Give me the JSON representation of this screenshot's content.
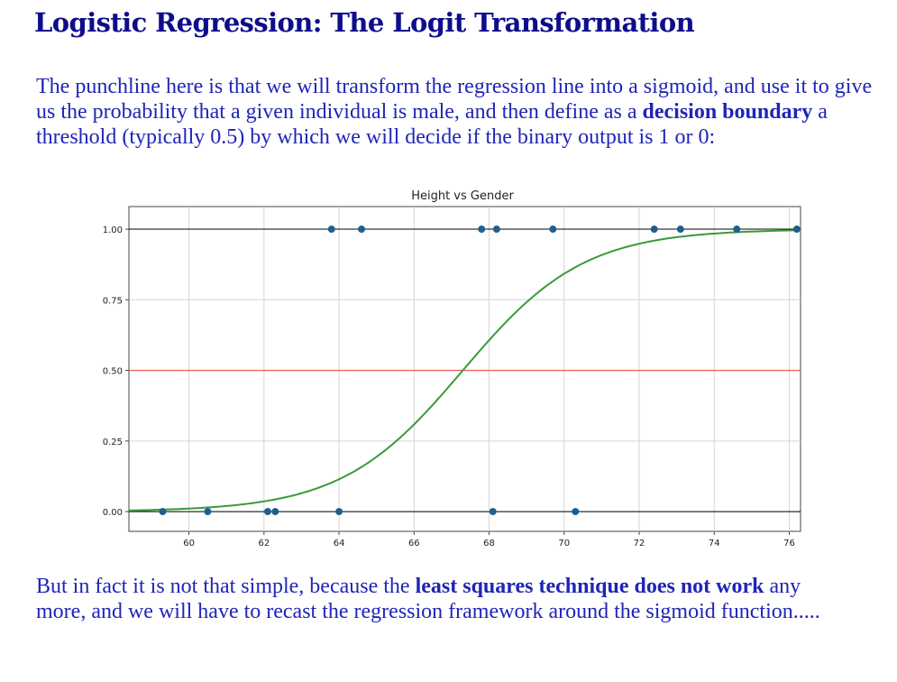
{
  "page": {
    "title": "Logistic Regression: The Logit Transformation",
    "intro": {
      "part1": "The punchline here is that we will transform the regression line into a sigmoid, and use it to give us the probability that a given individual is male, and then define as a ",
      "bold": "decision boundary",
      "part2": " a threshold (typically 0.5) by which we will decide if the binary output is 1 or 0:"
    },
    "outro": {
      "part1": "But in fact it is not that simple, because the ",
      "bold": "least squares technique does not work",
      "part2": " any more, and we will have to recast the regression framework around the sigmoid function....."
    }
  },
  "chart_data": {
    "type": "scatter",
    "title": "Height vs Gender",
    "xlabel": "",
    "ylabel": "",
    "xlim": [
      58.4,
      76.3
    ],
    "ylim": [
      -0.07,
      1.08
    ],
    "x_ticks": [
      60,
      62,
      64,
      66,
      68,
      70,
      72,
      74,
      76
    ],
    "y_ticks": [
      0.0,
      0.25,
      0.5,
      0.75,
      1.0
    ],
    "y_tick_labels": [
      "0.00",
      "0.25",
      "0.50",
      "0.75",
      "1.00"
    ],
    "grid": true,
    "points": {
      "color": "#1f5f8f",
      "x": [
        63.8,
        64.6,
        67.8,
        68.2,
        69.7,
        72.4,
        73.1,
        74.6,
        76.2,
        59.3,
        60.5,
        62.1,
        62.3,
        64.0,
        68.1,
        70.3
      ],
      "y": [
        1,
        1,
        1,
        1,
        1,
        1,
        1,
        1,
        1,
        0,
        0,
        0,
        0,
        0,
        0,
        0
      ]
    },
    "sigmoid": {
      "color": "#3a9a3a",
      "midpoint": 67.3,
      "slope": 0.62
    },
    "threshold": {
      "value": 0.5,
      "color": "#e8554a"
    },
    "reference_lines": {
      "values": [
        0,
        1
      ],
      "color": "#000000"
    }
  }
}
